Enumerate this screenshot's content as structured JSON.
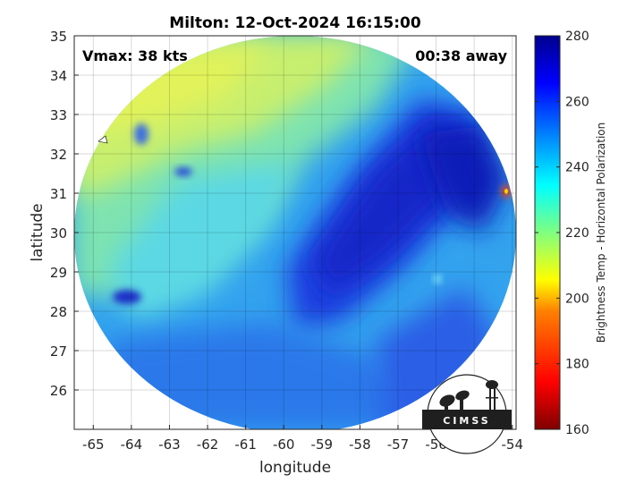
{
  "title": "Milton: 12-Oct-2024 16:15:00",
  "vmax_label": "Vmax: 38 kts",
  "time_away_label": "00:38 away",
  "xlabel": "longitude",
  "ylabel": "latitude",
  "colorbar": {
    "label": "Brightness Temp - Horizontal Polarization",
    "ticks": [
      "280",
      "260",
      "240",
      "220",
      "200",
      "180",
      "160"
    ],
    "range": [
      160,
      280
    ],
    "colormap": [
      "#7f0000",
      "#ff0000",
      "#ff8000",
      "#ffff00",
      "#80ff80",
      "#00ffff",
      "#0080ff",
      "#0000ff",
      "#00008f"
    ]
  },
  "logo": {
    "text": "CIMSS"
  },
  "chart_data": {
    "type": "heatmap",
    "title": "Milton: 12-Oct-2024 16:15:00",
    "xlabel": "longitude",
    "ylabel": "latitude",
    "xlim": [
      -65.5,
      -53.9
    ],
    "ylim": [
      25,
      35
    ],
    "xticks": [
      "-65",
      "-64",
      "-63",
      "-62",
      "-61",
      "-60",
      "-59",
      "-58",
      "-57",
      "-56",
      "-55",
      "-54"
    ],
    "yticks": [
      "35",
      "34",
      "33",
      "32",
      "31",
      "30",
      "29",
      "28",
      "27",
      "26"
    ],
    "grid": true,
    "blobs": [
      {
        "lon": -61.0,
        "lat": 33.6,
        "value": 218
      },
      {
        "lon": -63.5,
        "lat": 32.8,
        "value": 222
      },
      {
        "lon": -64.7,
        "lat": 33.9,
        "value": 225
      },
      {
        "lon": -58.0,
        "lat": 34.0,
        "value": 226
      },
      {
        "lon": -64.5,
        "lat": 29.3,
        "value": 234
      },
      {
        "lon": -62.0,
        "lat": 29.8,
        "value": 236
      },
      {
        "lon": -60.5,
        "lat": 31.5,
        "value": 240
      },
      {
        "lon": -57.0,
        "lat": 32.5,
        "value": 258
      },
      {
        "lon": -58.2,
        "lat": 30.2,
        "value": 262
      },
      {
        "lon": -55.2,
        "lat": 30.8,
        "value": 264
      },
      {
        "lon": -56.0,
        "lat": 29.0,
        "value": 258
      },
      {
        "lon": -59.5,
        "lat": 27.5,
        "value": 250
      },
      {
        "lon": -62.5,
        "lat": 26.2,
        "value": 248
      },
      {
        "lon": -64.0,
        "lat": 27.0,
        "value": 246
      },
      {
        "lon": -56.5,
        "lat": 26.2,
        "value": 252
      },
      {
        "lon": -54.3,
        "lat": 31.0,
        "value": 190
      }
    ],
    "swath_center": {
      "lon": -59.7,
      "lat": 30.0
    }
  }
}
